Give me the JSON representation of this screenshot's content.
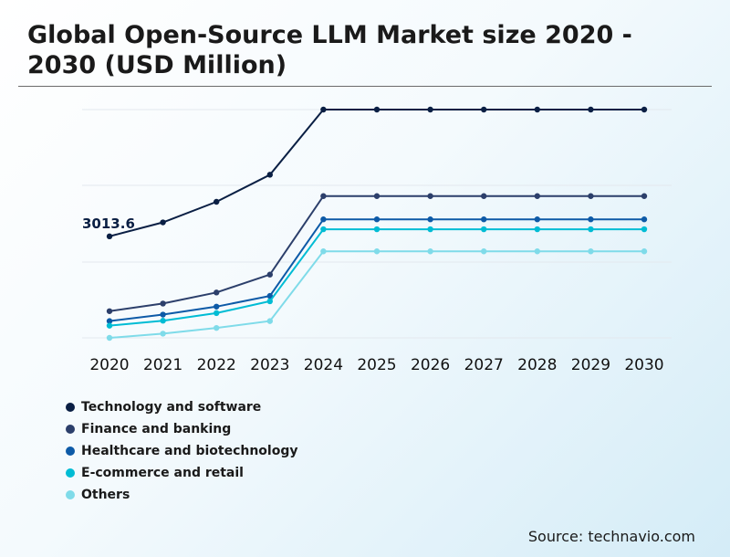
{
  "title": "Global Open-Source LLM Market size 2020 - 2030 (USD Million)",
  "source": "Source: technavio.com",
  "chart_data": {
    "type": "line",
    "title": "Global Open-Source LLM Market size 2020 - 2030 (USD Million)",
    "x": [
      "2020",
      "2021",
      "2022",
      "2023",
      "2024",
      "2025",
      "2026",
      "2027",
      "2028",
      "2029",
      "2030"
    ],
    "grid": true,
    "legend": "bottom-left",
    "annotation": {
      "series": "Technology and software",
      "x": "2020",
      "label": "3013.6"
    },
    "series": [
      {
        "name": "Technology and software",
        "color": "#0a1f44",
        "values": [
          3013.6,
          3380,
          3920,
          4630,
          6340,
          6340,
          6340,
          6340,
          6340,
          6340,
          6340
        ]
      },
      {
        "name": "Finance and banking",
        "color": "#2c3f6b",
        "values": [
          1050,
          1250,
          1540,
          2010,
          4070,
          4070,
          4070,
          4070,
          4070,
          4070,
          4070
        ]
      },
      {
        "name": "Healthcare and biotechnology",
        "color": "#0d5aa7",
        "values": [
          790,
          960,
          1170,
          1450,
          3460,
          3460,
          3460,
          3460,
          3460,
          3460,
          3460
        ]
      },
      {
        "name": "E-commerce and retail",
        "color": "#00bcd4",
        "values": [
          670,
          800,
          1000,
          1310,
          3200,
          3200,
          3200,
          3200,
          3200,
          3200,
          3200
        ]
      },
      {
        "name": "Others",
        "color": "#7fdbe9",
        "values": [
          350,
          460,
          610,
          790,
          2620,
          2620,
          2620,
          2620,
          2620,
          2620,
          2620
        ]
      }
    ]
  }
}
